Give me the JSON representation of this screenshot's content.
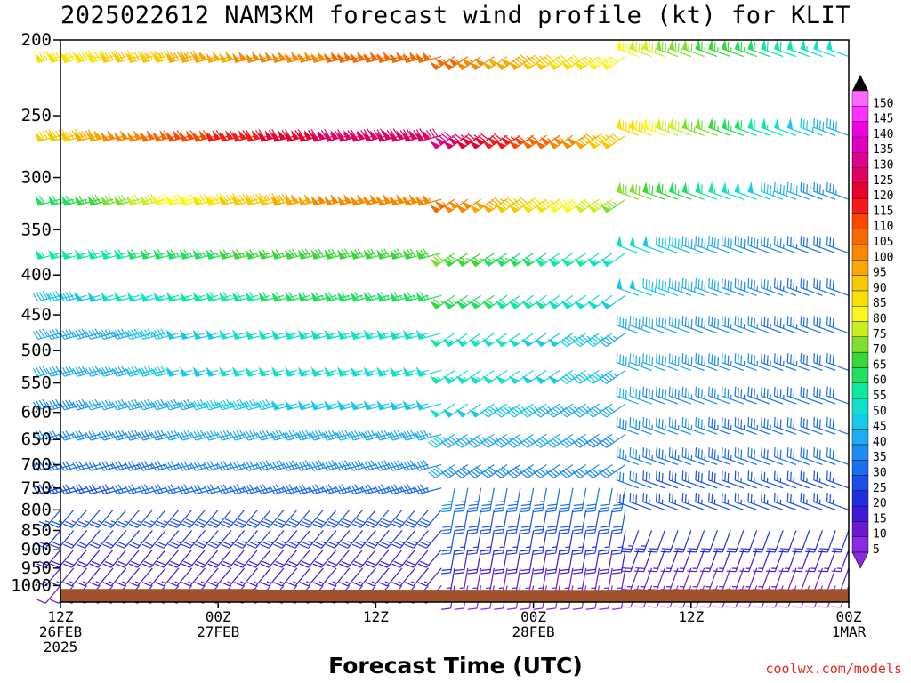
{
  "chart_data": {
    "type": "wind-barb-profile",
    "title": "2025022612 NAM3KM forecast wind profile (kt) for KLIT",
    "xlabel": "Forecast Time (UTC)",
    "credit": "coolwx.com/models",
    "y_ticks": [
      200,
      250,
      300,
      350,
      400,
      450,
      500,
      550,
      600,
      650,
      700,
      750,
      800,
      850,
      900,
      950,
      1000
    ],
    "y_range_hpa": [
      200,
      1050
    ],
    "y_scale": "log-pressure",
    "x_range_hours": [
      0,
      60
    ],
    "x_ticks": [
      {
        "hour": 0,
        "lines": [
          "12Z",
          "26FEB",
          "2025"
        ]
      },
      {
        "hour": 12,
        "lines": [
          "00Z",
          "27FEB"
        ]
      },
      {
        "hour": 24,
        "lines": [
          "12Z"
        ]
      },
      {
        "hour": 36,
        "lines": [
          "00Z",
          "28FEB"
        ]
      },
      {
        "hour": 48,
        "lines": [
          "12Z"
        ]
      },
      {
        "hour": 60,
        "lines": [
          "00Z",
          "1MAR"
        ]
      }
    ],
    "colorbar": {
      "levels": [
        "5",
        "10",
        "15",
        "20",
        "25",
        "30",
        "35",
        "40",
        "45",
        "50",
        "55",
        "60",
        "65",
        "70",
        "75",
        "80",
        "85",
        "90",
        "95",
        "100",
        "105",
        "110",
        "115",
        "120",
        "125",
        "130",
        "135",
        "140",
        "145",
        "150"
      ],
      "colors": [
        "#8a2be2",
        "#6a1bd0",
        "#3f18d8",
        "#1f2fe0",
        "#1a4fe8",
        "#1a6ef0",
        "#1c8cf2",
        "#20aaf0",
        "#19c8e6",
        "#10e0c8",
        "#10e8a0",
        "#20e060",
        "#38d838",
        "#80e030",
        "#c8f020",
        "#f8f820",
        "#f8e000",
        "#f8c800",
        "#f8a800",
        "#f88800",
        "#f86800",
        "#f84800",
        "#f81818",
        "#e80030",
        "#e00060",
        "#e00090",
        "#e000c0",
        "#f000e0",
        "#ff30ff",
        "#ff66ff"
      ]
    },
    "surface_color": "#a0522d",
    "speed_profile_kt": [
      {
        "p": 210,
        "hour0": 85,
        "peak": 107,
        "end": 50
      },
      {
        "p": 265,
        "hour0": 90,
        "peak": 130,
        "end": 40
      },
      {
        "p": 320,
        "hour0": 60,
        "peak": 105,
        "end": 35
      },
      {
        "p": 375,
        "hour0": 55,
        "peak": 70,
        "end": 30
      },
      {
        "p": 425,
        "hour0": 45,
        "peak": 65,
        "end": 30
      },
      {
        "p": 475,
        "hour0": 40,
        "peak": 55,
        "end": 30
      },
      {
        "p": 530,
        "hour0": 40,
        "peak": 55,
        "end": 30
      },
      {
        "p": 585,
        "hour0": 38,
        "peak": 50,
        "end": 30
      },
      {
        "p": 640,
        "hour0": 35,
        "peak": 45,
        "end": 30
      },
      {
        "p": 700,
        "hour0": 30,
        "peak": 40,
        "end": 30
      },
      {
        "p": 750,
        "hour0": 28,
        "peak": 35,
        "end": 25
      },
      {
        "p": 800,
        "hour0": 25,
        "peak": 30,
        "end": 25
      },
      {
        "p": 850,
        "hour0": 20,
        "peak": 25,
        "end": 20
      },
      {
        "p": 900,
        "hour0": 18,
        "peak": 20,
        "end": 15
      },
      {
        "p": 950,
        "hour0": 15,
        "peak": 15,
        "end": 12
      },
      {
        "p": 1000,
        "hour0": 10,
        "peak": 10,
        "end": 8
      }
    ]
  }
}
